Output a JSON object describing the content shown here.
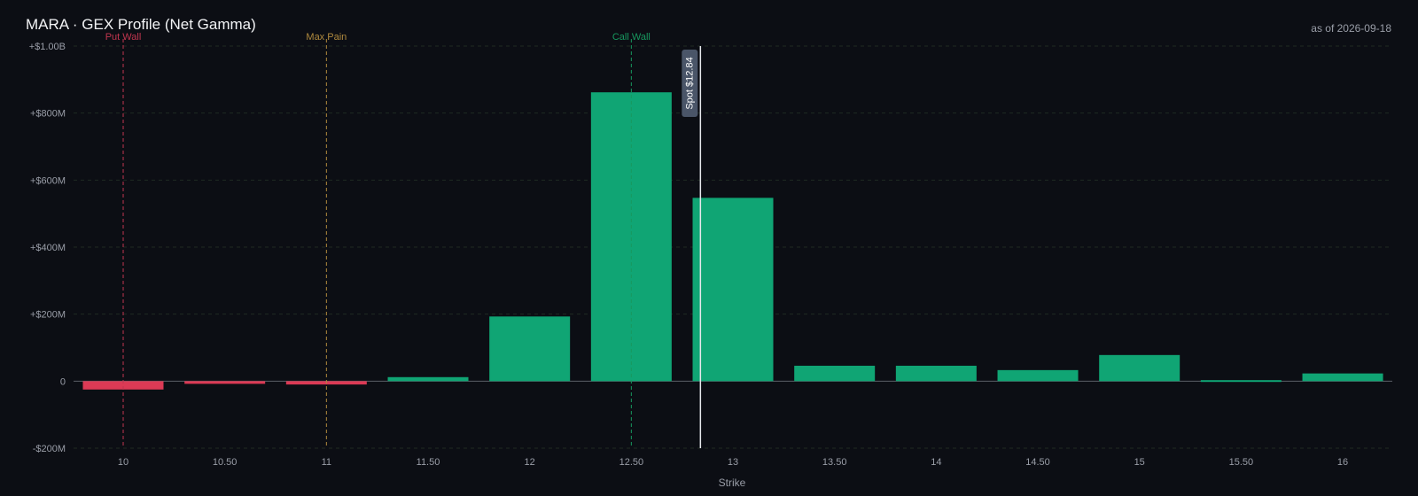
{
  "header": {
    "title": "MARA · GEX Profile (Net Gamma)",
    "as_of": "as of 2026-09-18"
  },
  "colors": {
    "background": "#0c0e14",
    "positive_bar": "#10a574",
    "negative_bar": "#dc3a55",
    "grid": "#1f2a22",
    "zero_line": "#5a5e66",
    "put_wall": "#c2364f",
    "max_pain": "#b08a3e",
    "call_wall": "#17985f",
    "spot_line": "#e6e8ec",
    "spot_label_bg": "#4a5568"
  },
  "chart_data": {
    "type": "bar",
    "title": "MARA · GEX Profile (Net Gamma)",
    "xlabel": "Strike",
    "ylabel": "",
    "ylim": [
      -200000000,
      1000000000
    ],
    "y_ticks": [
      {
        "value": 1000000000,
        "label": "+$1.00B"
      },
      {
        "value": 800000000,
        "label": "+$800M"
      },
      {
        "value": 600000000,
        "label": "+$600M"
      },
      {
        "value": 400000000,
        "label": "+$400M"
      },
      {
        "value": 200000000,
        "label": "+$200M"
      },
      {
        "value": 0,
        "label": "0"
      },
      {
        "value": -200000000,
        "label": "-$200M"
      }
    ],
    "categories": [
      "10",
      "10.50",
      "11",
      "11.50",
      "12",
      "12.50",
      "13",
      "13.50",
      "14",
      "14.50",
      "15",
      "15.50",
      "16"
    ],
    "strikes": [
      10,
      10.5,
      11,
      11.5,
      12,
      12.5,
      13,
      13.5,
      14,
      14.5,
      15,
      15.5,
      16
    ],
    "values": [
      -25000000,
      -8000000,
      -10000000,
      12000000,
      193000000,
      862000000,
      547000000,
      46000000,
      46000000,
      33000000,
      78000000,
      3000000,
      23000000
    ],
    "grid": true,
    "markers": [
      {
        "name": "Put Wall",
        "strike": 10,
        "color": "#c2364f"
      },
      {
        "name": "Max Pain",
        "strike": 11,
        "color": "#b08a3e"
      },
      {
        "name": "Call Wall",
        "strike": 12.5,
        "color": "#17985f"
      }
    ],
    "spot": {
      "label": "Spot $12.84",
      "strike": 12.84
    }
  }
}
